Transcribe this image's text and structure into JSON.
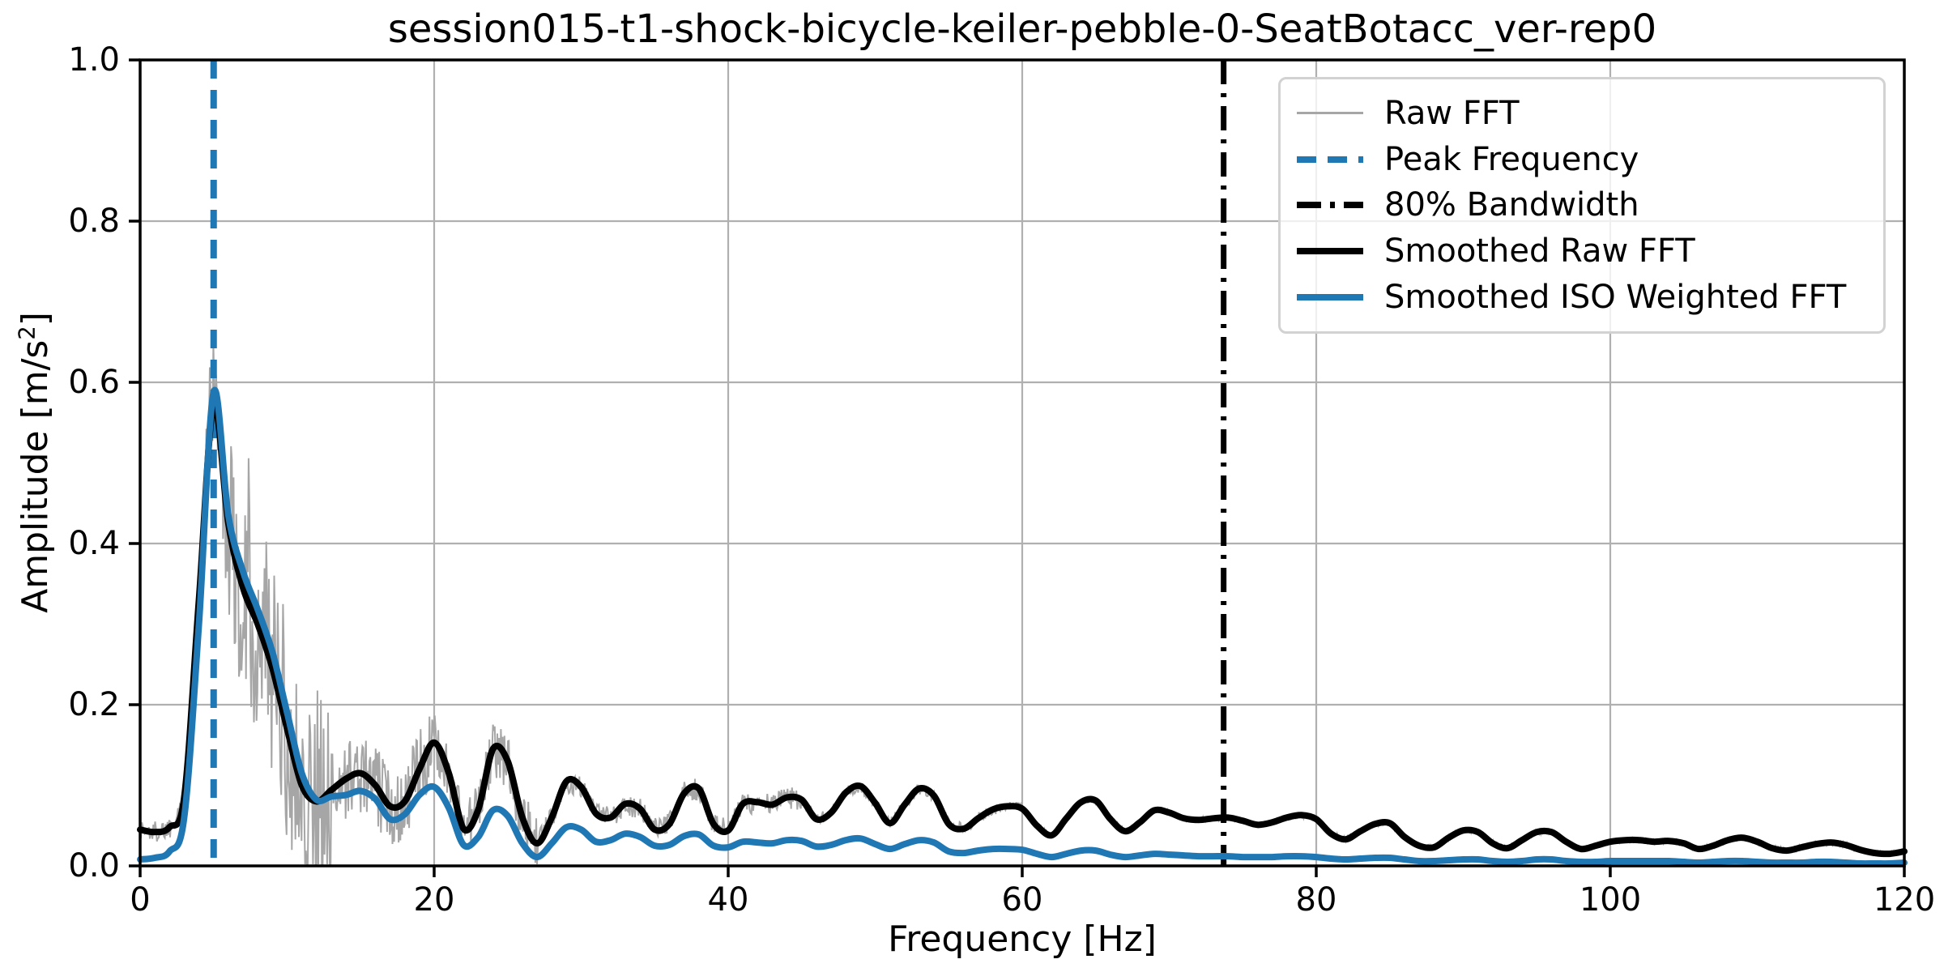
{
  "chart_data": {
    "type": "line",
    "title": "session015-t1-shock-bicycle-keiler-pebble-0-SeatBotacc_ver-rep0",
    "xlabel": "Frequency [Hz]",
    "ylabel": "Amplitude [m/s²]",
    "ylabel_parts": {
      "base": "Amplitude [m/s",
      "sup": "2",
      "close": "]"
    },
    "x_axis": {
      "label": "Frequency [Hz]",
      "lim": [
        0,
        120
      ],
      "ticks": [
        0,
        20,
        40,
        60,
        80,
        100,
        120
      ],
      "tick_labels": [
        "0",
        "20",
        "40",
        "60",
        "80",
        "100",
        "120"
      ]
    },
    "y_axis": {
      "label": "Amplitude [m/s²]",
      "lim": [
        0,
        1
      ],
      "ticks": [
        0.0,
        0.2,
        0.4,
        0.6,
        0.8,
        1.0
      ],
      "tick_labels": [
        "0.0",
        "0.2",
        "0.4",
        "0.6",
        "0.8",
        "1.0"
      ]
    },
    "grid": true,
    "legend_position": "upper right",
    "colors": {
      "smoothed_raw": "#000000",
      "smoothed_iso": "#1f77b4",
      "raw_fft": "#a6a6a6",
      "grid": "#b0b0b0",
      "peak_line": "#1f77b4",
      "bandwidth_line": "#000000"
    },
    "legend": {
      "entries": [
        {
          "label": "Raw FFT",
          "swatch": "raw"
        },
        {
          "label": "Peak Frequency",
          "swatch": "peak"
        },
        {
          "label": "80% Bandwidth",
          "swatch": "bw"
        },
        {
          "label": "Smoothed Raw FFT",
          "swatch": "sraw"
        },
        {
          "label": "Smoothed ISO Weighted FFT",
          "swatch": "siso"
        }
      ]
    },
    "annotations": [
      {
        "label": "Peak Frequency",
        "x_hz": 5.0,
        "color": "#1f77b4",
        "linestyle": "dashed",
        "dash": "23 14",
        "width": 8
      },
      {
        "label": "80% Bandwidth",
        "x_hz": 73.7,
        "color": "#000000",
        "linestyle": "dashdot",
        "dash": "30 11 5 11",
        "width": 7
      }
    ],
    "series": [
      {
        "name": "Smoothed Raw FFT",
        "color": "#000000",
        "width": 8,
        "x_start": 0,
        "x_step": 1,
        "values": [
          0.045,
          0.042,
          0.048,
          0.085,
          0.33,
          0.572,
          0.425,
          0.345,
          0.3,
          0.245,
          0.17,
          0.1,
          0.08,
          0.094,
          0.108,
          0.115,
          0.1,
          0.074,
          0.08,
          0.12,
          0.153,
          0.115,
          0.046,
          0.07,
          0.145,
          0.13,
          0.06,
          0.028,
          0.06,
          0.105,
          0.098,
          0.065,
          0.06,
          0.077,
          0.071,
          0.045,
          0.052,
          0.09,
          0.096,
          0.052,
          0.044,
          0.077,
          0.079,
          0.076,
          0.085,
          0.082,
          0.058,
          0.066,
          0.091,
          0.099,
          0.078,
          0.053,
          0.076,
          0.096,
          0.087,
          0.052,
          0.046,
          0.059,
          0.07,
          0.074,
          0.071,
          0.05,
          0.038,
          0.059,
          0.079,
          0.081,
          0.058,
          0.043,
          0.054,
          0.069,
          0.066,
          0.059,
          0.057,
          0.059,
          0.06,
          0.056,
          0.051,
          0.054,
          0.06,
          0.063,
          0.058,
          0.04,
          0.033,
          0.043,
          0.052,
          0.053,
          0.036,
          0.025,
          0.023,
          0.035,
          0.044,
          0.042,
          0.028,
          0.022,
          0.032,
          0.042,
          0.042,
          0.03,
          0.021,
          0.025,
          0.03,
          0.032,
          0.032,
          0.03,
          0.031,
          0.028,
          0.021,
          0.025,
          0.032,
          0.035,
          0.03,
          0.022,
          0.019,
          0.023,
          0.027,
          0.029,
          0.026,
          0.02,
          0.016,
          0.015,
          0.018
        ]
      },
      {
        "name": "Smoothed ISO Weighted FFT",
        "color": "#1f77b4",
        "width": 8,
        "x_start": 0,
        "x_step": 1,
        "values": [
          0.008,
          0.01,
          0.018,
          0.06,
          0.3,
          0.588,
          0.435,
          0.365,
          0.318,
          0.265,
          0.19,
          0.115,
          0.082,
          0.086,
          0.088,
          0.093,
          0.083,
          0.058,
          0.064,
          0.088,
          0.098,
          0.072,
          0.026,
          0.036,
          0.069,
          0.062,
          0.028,
          0.011,
          0.028,
          0.048,
          0.045,
          0.03,
          0.032,
          0.04,
          0.036,
          0.025,
          0.026,
          0.037,
          0.039,
          0.025,
          0.023,
          0.03,
          0.029,
          0.028,
          0.032,
          0.031,
          0.024,
          0.026,
          0.032,
          0.034,
          0.027,
          0.021,
          0.027,
          0.032,
          0.029,
          0.018,
          0.016,
          0.019,
          0.021,
          0.021,
          0.02,
          0.015,
          0.011,
          0.015,
          0.019,
          0.019,
          0.014,
          0.011,
          0.013,
          0.015,
          0.014,
          0.013,
          0.012,
          0.012,
          0.012,
          0.011,
          0.011,
          0.011,
          0.012,
          0.012,
          0.011,
          0.009,
          0.008,
          0.009,
          0.01,
          0.01,
          0.008,
          0.006,
          0.006,
          0.007,
          0.008,
          0.008,
          0.006,
          0.005,
          0.006,
          0.008,
          0.008,
          0.006,
          0.005,
          0.005,
          0.006,
          0.006,
          0.006,
          0.006,
          0.006,
          0.005,
          0.004,
          0.005,
          0.006,
          0.006,
          0.005,
          0.004,
          0.004,
          0.004,
          0.005,
          0.005,
          0.004,
          0.003,
          0.003,
          0.003,
          0.004
        ]
      }
    ],
    "raw_fft": {
      "name": "Raw FFT",
      "color": "#a6a6a6",
      "width": 2,
      "derived_from": "Smoothed Raw FFT",
      "sample_step_hz": 0.06,
      "noise_seed": 1337,
      "max_observed": 0.66,
      "noise_envelope": [
        [
          0,
          3,
          0.015
        ],
        [
          3,
          5.5,
          0.055
        ],
        [
          5.5,
          13,
          0.14
        ],
        [
          13,
          20,
          0.05
        ],
        [
          20,
          27,
          0.035
        ],
        [
          27,
          45,
          0.014
        ],
        [
          45,
          60,
          0.007
        ],
        [
          60,
          120,
          0.003
        ]
      ],
      "peak_extra": [
        4.5,
        5.4,
        0.075
      ],
      "spike_zone": [
        5.5,
        13,
        0.07,
        0.18
      ]
    }
  }
}
